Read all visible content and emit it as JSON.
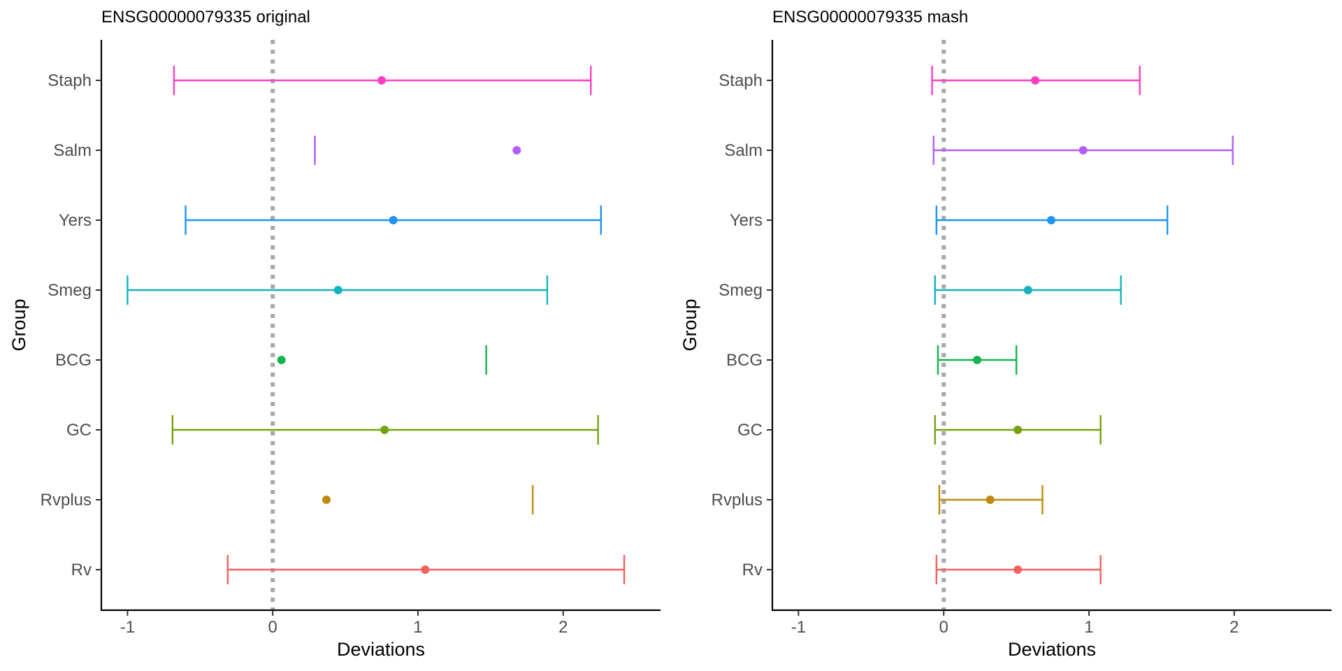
{
  "chart_data": [
    {
      "type": "errorbar-dot",
      "title": "ENSG00000079335 original",
      "xlabel": "Deviations",
      "ylabel": "Group",
      "xlim": [
        -1.18,
        2.67
      ],
      "x_ticks": [
        -1,
        0,
        1,
        2
      ],
      "x_tick_labels": [
        "-1",
        "0",
        "1",
        "2"
      ],
      "reference_line": 0,
      "groups": [
        {
          "name": "Staph",
          "color": "#FF3FC2",
          "estimate": 0.75,
          "lower": -0.68,
          "upper": 2.19
        },
        {
          "name": "Salm",
          "color": "#B45EF7",
          "estimate": 1.68,
          "lower": 0.29,
          "upper": null
        },
        {
          "name": "Yers",
          "color": "#1E94F0",
          "estimate": 0.83,
          "lower": -0.6,
          "upper": 2.26
        },
        {
          "name": "Smeg",
          "color": "#12B3C0",
          "estimate": 0.45,
          "lower": -1.0,
          "upper": 1.89
        },
        {
          "name": "BCG",
          "color": "#16B350",
          "estimate": 0.06,
          "lower": null,
          "upper": 1.47
        },
        {
          "name": "GC",
          "color": "#73A20E",
          "estimate": 0.77,
          "lower": -0.69,
          "upper": 2.24
        },
        {
          "name": "Rvplus",
          "color": "#C08A0E",
          "estimate": 0.37,
          "lower": null,
          "upper": 1.79
        },
        {
          "name": "Rv",
          "color": "#F2625E",
          "estimate": 1.05,
          "lower": -0.31,
          "upper": 2.42
        }
      ]
    },
    {
      "type": "errorbar-dot",
      "title": "ENSG00000079335 mash",
      "xlabel": "Deviations",
      "ylabel": "Group",
      "xlim": [
        -1.18,
        2.67
      ],
      "x_ticks": [
        -1,
        0,
        1,
        2
      ],
      "x_tick_labels": [
        "-1",
        "0",
        "1",
        "2"
      ],
      "reference_line": 0,
      "groups": [
        {
          "name": "Staph",
          "color": "#FF3FC2",
          "estimate": 0.63,
          "lower": -0.08,
          "upper": 1.35
        },
        {
          "name": "Salm",
          "color": "#B45EF7",
          "estimate": 0.96,
          "lower": -0.07,
          "upper": 1.99
        },
        {
          "name": "Yers",
          "color": "#1E94F0",
          "estimate": 0.74,
          "lower": -0.05,
          "upper": 1.54
        },
        {
          "name": "Smeg",
          "color": "#12B3C0",
          "estimate": 0.58,
          "lower": -0.06,
          "upper": 1.22
        },
        {
          "name": "BCG",
          "color": "#16B350",
          "estimate": 0.23,
          "lower": -0.04,
          "upper": 0.5
        },
        {
          "name": "GC",
          "color": "#73A20E",
          "estimate": 0.51,
          "lower": -0.06,
          "upper": 1.08
        },
        {
          "name": "Rvplus",
          "color": "#C08A0E",
          "estimate": 0.32,
          "lower": -0.03,
          "upper": 0.68
        },
        {
          "name": "Rv",
          "color": "#F2625E",
          "estimate": 0.51,
          "lower": -0.05,
          "upper": 1.08
        }
      ]
    }
  ]
}
